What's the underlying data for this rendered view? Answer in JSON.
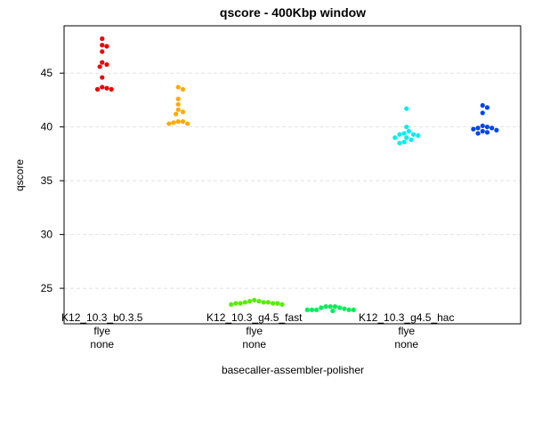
{
  "chart_data": {
    "type": "scatter",
    "title": "qscore - 400Kbp window",
    "xlabel": "basecaller-assembler-polisher",
    "ylabel": "qscore",
    "ylim": [
      21.7,
      49.4
    ],
    "yticks": [
      25,
      30,
      35,
      40,
      45
    ],
    "grid": "horizontal dashed",
    "categories": [
      {
        "line1": "K12_10.3_b0.3.5",
        "line2": "flye",
        "line3": "none"
      },
      {
        "line1": "",
        "line2": "",
        "line3": ""
      },
      {
        "line1": "K12_10.3_g4.5_fast",
        "line2": "flye",
        "line3": "none"
      },
      {
        "line1": "",
        "line2": "",
        "line3": ""
      },
      {
        "line1": "K12_10.3_g4.5_hac",
        "line2": "flye",
        "line3": "none"
      },
      {
        "line1": "",
        "line2": "",
        "line3": ""
      }
    ],
    "series": [
      {
        "color": "#ee0000",
        "values": [
          48.2,
          47.6,
          47.5,
          47.0,
          46.0,
          45.8,
          45.6,
          44.6,
          43.7,
          43.6,
          43.5,
          43.5
        ]
      },
      {
        "color": "#ffaa00",
        "values": [
          43.7,
          43.5,
          42.6,
          42.1,
          41.6,
          41.4,
          41.2,
          40.5,
          40.5,
          40.4,
          40.3,
          40.3
        ]
      },
      {
        "color": "#55ee00",
        "values": [
          23.9,
          23.8,
          23.8,
          23.7,
          23.7,
          23.7,
          23.6,
          23.6,
          23.6,
          23.6,
          23.5,
          23.5
        ]
      },
      {
        "color": "#00ee55",
        "values": [
          23.3,
          23.3,
          23.3,
          23.2,
          23.2,
          23.1,
          23.0,
          23.0,
          23.0,
          23.0,
          23.0,
          22.9
        ]
      },
      {
        "color": "#00eeee",
        "values": [
          41.7,
          40.0,
          39.6,
          39.4,
          39.3,
          39.3,
          39.2,
          39.0,
          39.0,
          38.8,
          38.6,
          38.5
        ]
      },
      {
        "color": "#0044ee",
        "values": [
          42.0,
          41.8,
          41.3,
          40.1,
          40.0,
          39.9,
          39.9,
          39.8,
          39.7,
          39.6,
          39.5,
          39.4
        ]
      }
    ]
  }
}
